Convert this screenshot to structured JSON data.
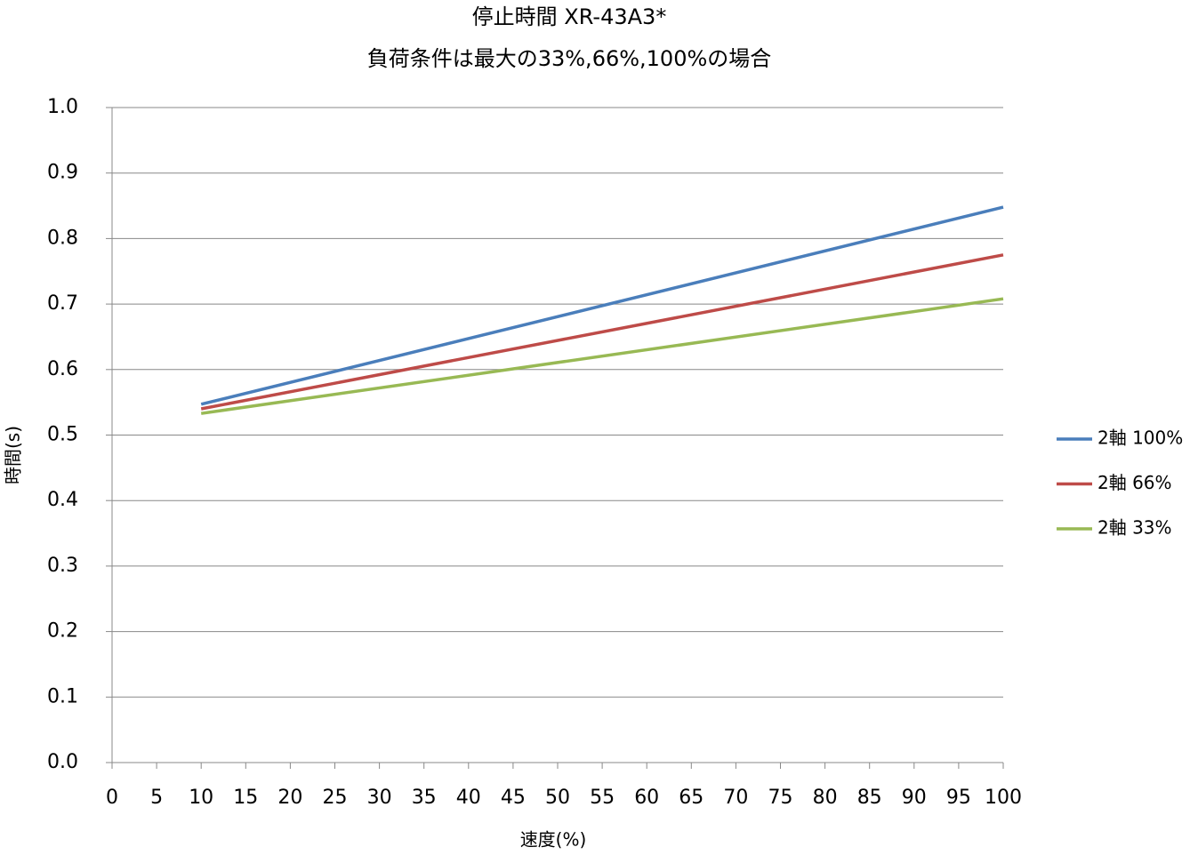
{
  "chart_data": {
    "type": "line",
    "title": "停止時間 XR-43A3*",
    "subtitle": "負荷条件は最大の33%,66%,100%の場合",
    "x_label": "速度(%)",
    "y_label": "時間(s)",
    "x": [
      10,
      100
    ],
    "series": [
      {
        "name": "2軸 100%",
        "color": "#4a7ebb",
        "values": [
          0.547,
          0.848
        ]
      },
      {
        "name": "2軸 66%",
        "color": "#be4b48",
        "values": [
          0.54,
          0.775
        ]
      },
      {
        "name": "2軸 33%",
        "color": "#98b954",
        "values": [
          0.533,
          0.708
        ]
      }
    ],
    "xlim": [
      0,
      100
    ],
    "xticks": [
      0,
      5,
      10,
      15,
      20,
      25,
      30,
      35,
      40,
      45,
      50,
      55,
      60,
      65,
      70,
      75,
      80,
      85,
      90,
      95,
      100
    ],
    "ylim": [
      0,
      1
    ],
    "yticks": [
      {
        "value": 0,
        "label": "0.0"
      },
      0.1,
      0.2,
      0.3,
      0.4,
      0.5,
      0.6,
      0.7,
      0.8,
      0.9,
      {
        "value": 1,
        "label": "1.0"
      }
    ],
    "grid": true,
    "legend": "right"
  }
}
